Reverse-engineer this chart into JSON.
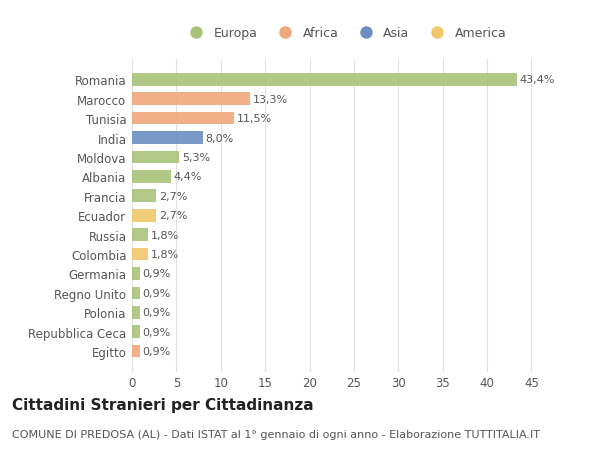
{
  "countries": [
    "Romania",
    "Marocco",
    "Tunisia",
    "India",
    "Moldova",
    "Albania",
    "Francia",
    "Ecuador",
    "Russia",
    "Colombia",
    "Germania",
    "Regno Unito",
    "Polonia",
    "Repubblica Ceca",
    "Egitto"
  ],
  "values": [
    43.4,
    13.3,
    11.5,
    8.0,
    5.3,
    4.4,
    2.7,
    2.7,
    1.8,
    1.8,
    0.9,
    0.9,
    0.9,
    0.9,
    0.9
  ],
  "labels": [
    "43,4%",
    "13,3%",
    "11,5%",
    "8,0%",
    "5,3%",
    "4,4%",
    "2,7%",
    "2,7%",
    "1,8%",
    "1,8%",
    "0,9%",
    "0,9%",
    "0,9%",
    "0,9%",
    "0,9%"
  ],
  "colors": [
    "#a8c47a",
    "#f0a87a",
    "#f0a87a",
    "#6b8fc4",
    "#a8c47a",
    "#a8c47a",
    "#a8c47a",
    "#f0c86a",
    "#a8c47a",
    "#f0c86a",
    "#a8c47a",
    "#a8c47a",
    "#a8c47a",
    "#a8c47a",
    "#f0a87a"
  ],
  "legend_labels": [
    "Europa",
    "Africa",
    "Asia",
    "America"
  ],
  "legend_colors": [
    "#a8c47a",
    "#f0a87a",
    "#6b8fc4",
    "#f0c86a"
  ],
  "title": "Cittadini Stranieri per Cittadinanza",
  "subtitle": "COMUNE DI PREDOSA (AL) - Dati ISTAT al 1° gennaio di ogni anno - Elaborazione TUTTITALIA.IT",
  "xlim": [
    0,
    48
  ],
  "xticks": [
    0,
    5,
    10,
    15,
    20,
    25,
    30,
    35,
    40,
    45
  ],
  "background_color": "#ffffff",
  "grid_color": "#e0e0e0",
  "bar_height": 0.65,
  "title_fontsize": 11,
  "subtitle_fontsize": 8,
  "tick_fontsize": 8.5,
  "label_fontsize": 8,
  "text_color": "#555555"
}
